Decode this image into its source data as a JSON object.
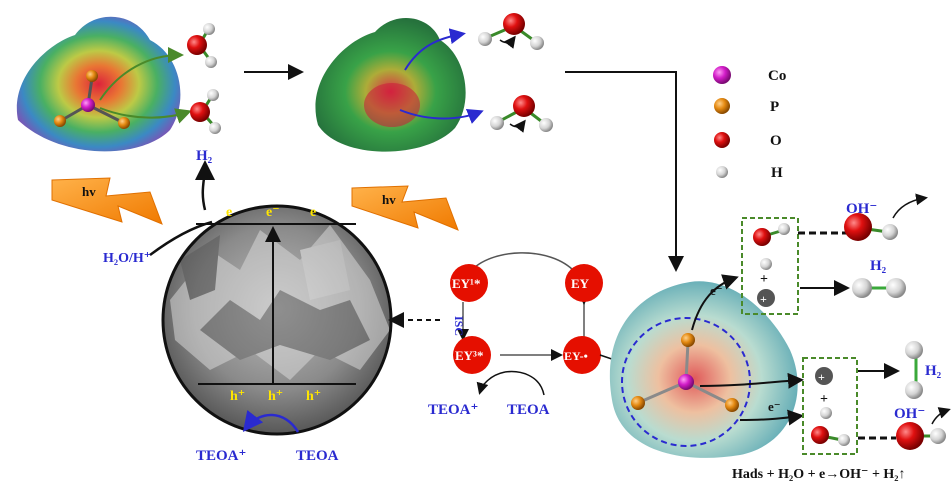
{
  "legend": {
    "co": "Co",
    "p": "P",
    "o": "O",
    "h": "H",
    "colors": {
      "co": "#d21cc8",
      "p": "#e58a12",
      "o": "#d40000",
      "h": "#e8e8e8"
    }
  },
  "light": {
    "left": "hv",
    "middle": "hv"
  },
  "photocatalyst": {
    "h2_top": "H₂",
    "h2o_h": "H₂O/H⁺",
    "electron": "e",
    "electron_minus": "e⁻",
    "hole": "h⁺",
    "teoa_plus": "TEOA⁺",
    "teoa": "TEOA"
  },
  "ey_cycle": {
    "ey1": "EY¹*",
    "ey": "EY",
    "ey3": "EY³*",
    "ey_rad": "EY-•",
    "isc": "ISC",
    "teoa_plus": "TEOA⁺",
    "teoa": "TEOA",
    "node_color": "#e50f00"
  },
  "mechanism": {
    "electron_top": "e⁻",
    "electron_bottom": "e⁻",
    "plus": "+",
    "oh_top": "OH⁻",
    "oh_bottom": "OH⁻",
    "h2_mid": "H₂",
    "h2_right": "H₂",
    "equation": "Hads + H₂O + e→OH⁻ + H₂↑"
  }
}
